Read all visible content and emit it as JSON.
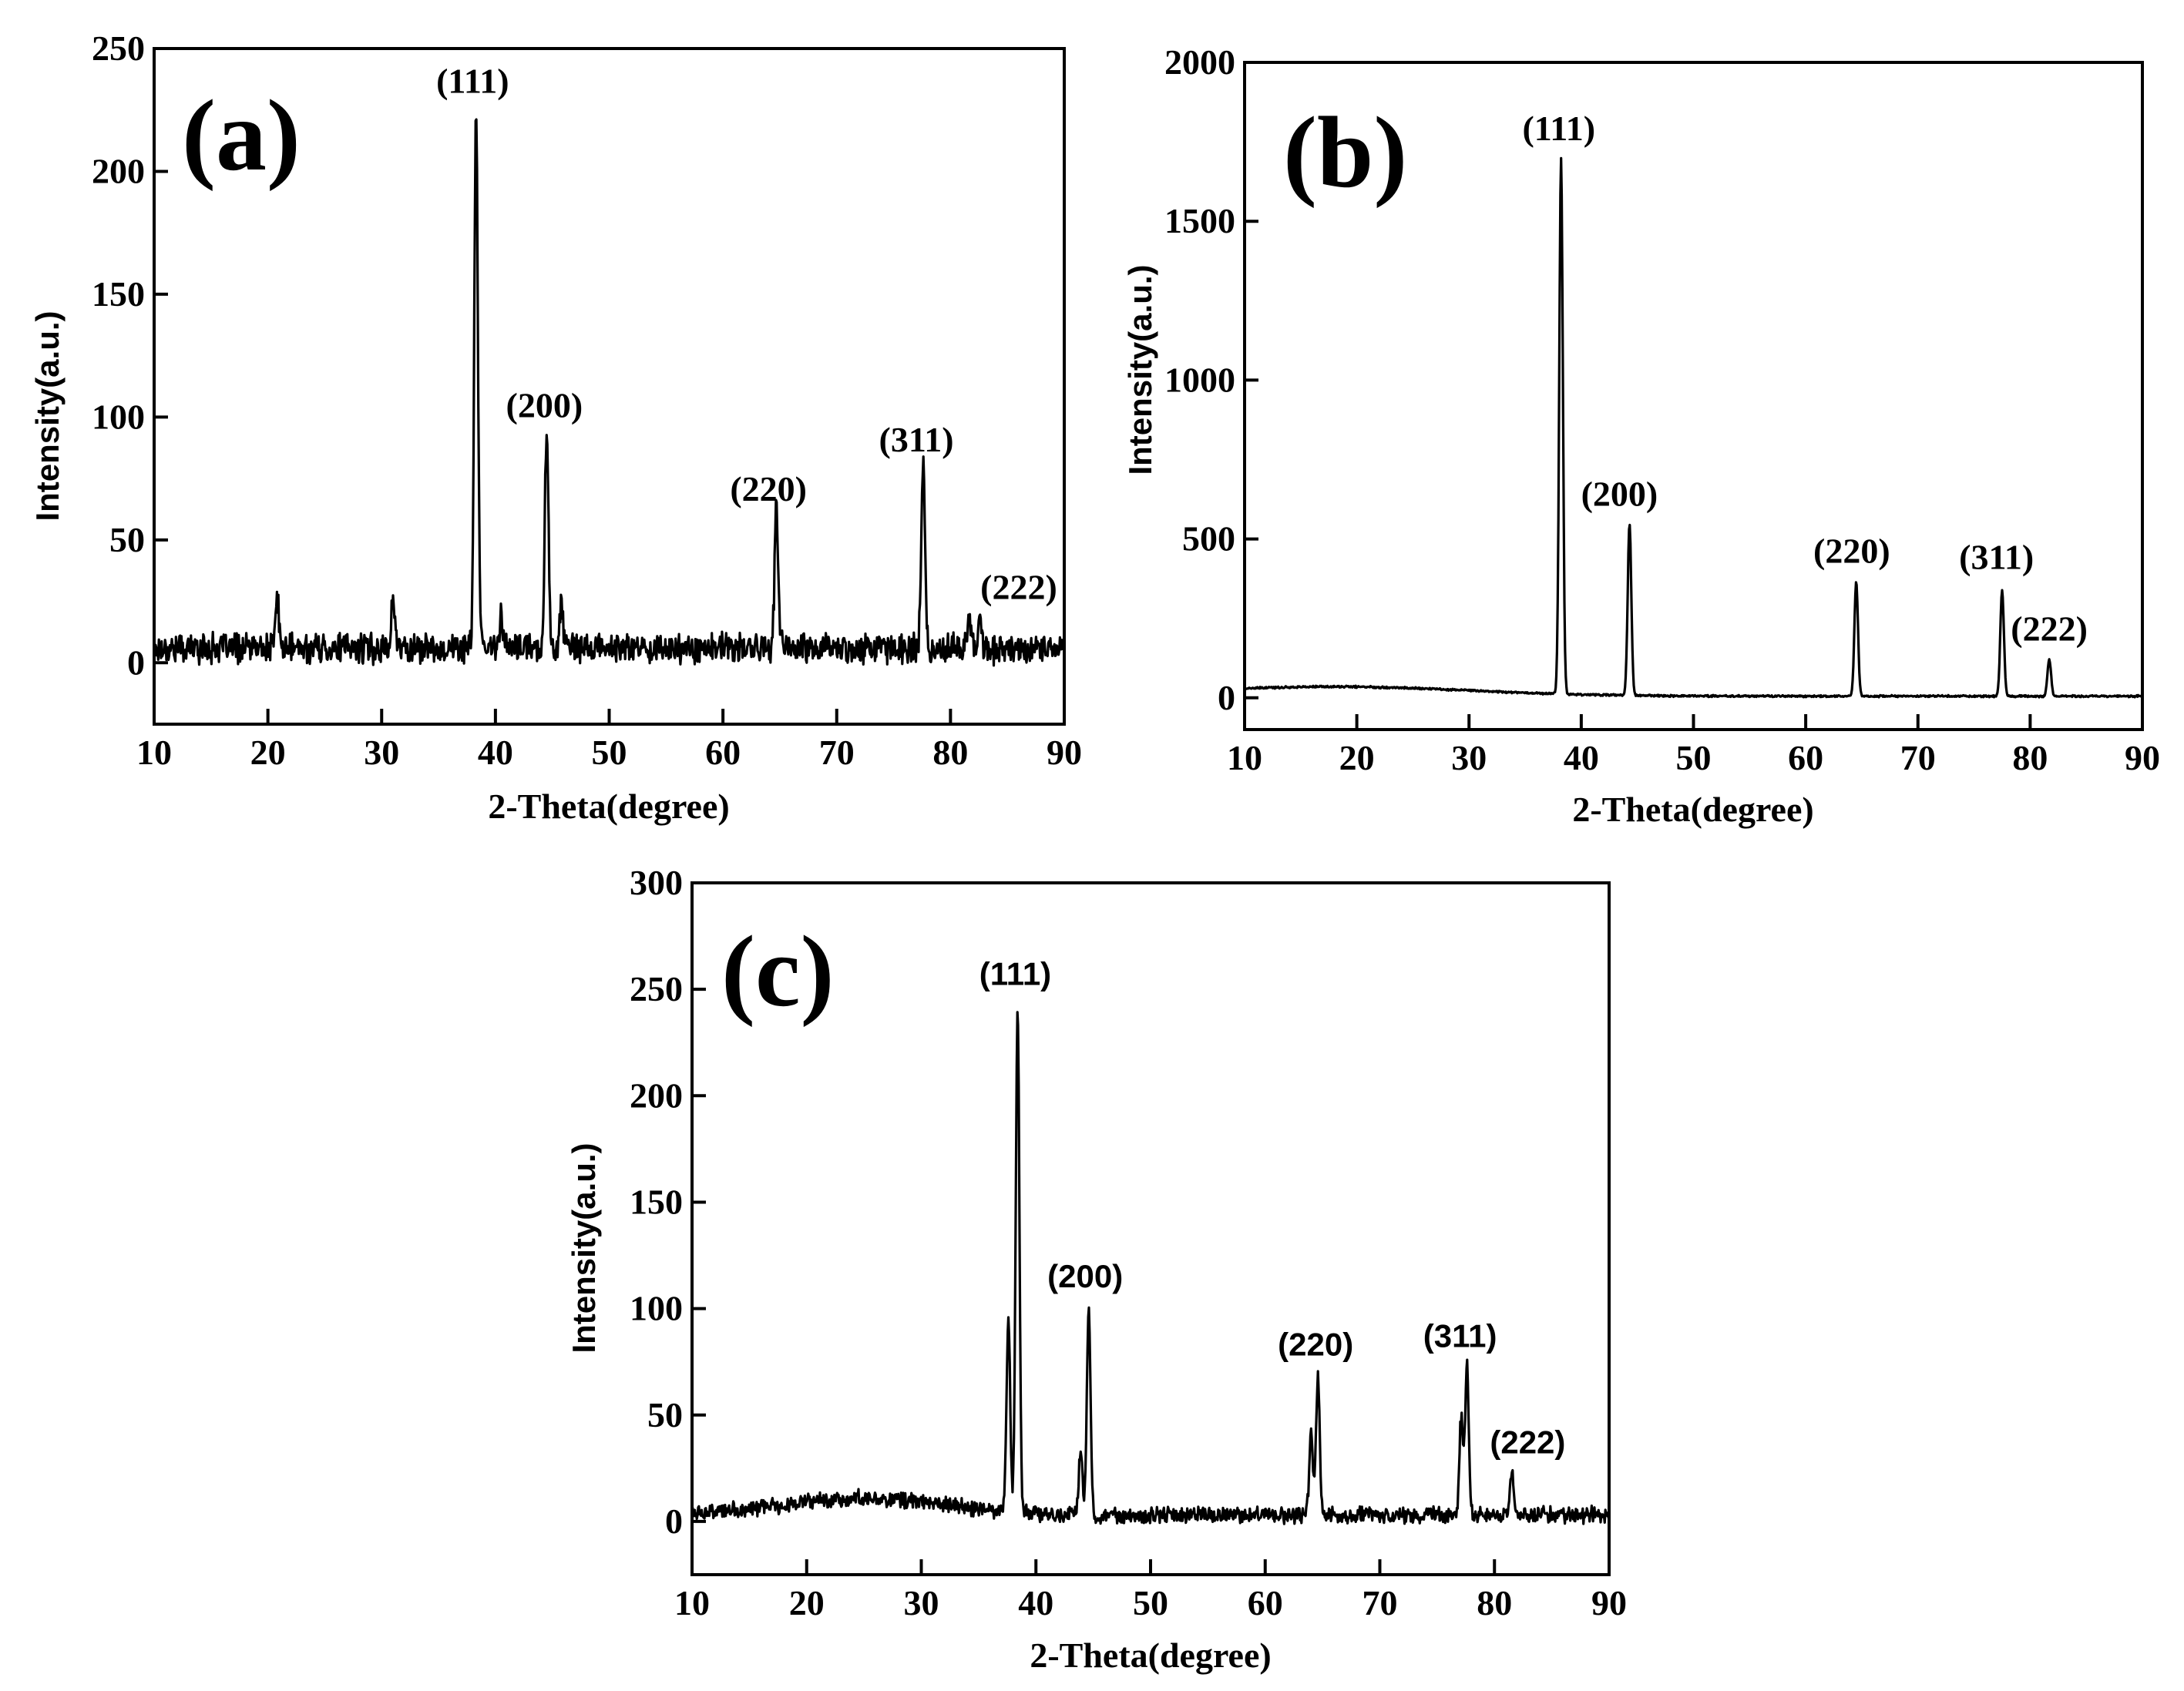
{
  "chart_data": [
    {
      "type": "line",
      "panel_tag": "(a)",
      "xlabel": "2-Theta(degree)",
      "ylabel": "Intensity(a.u.)",
      "xlim": [
        10,
        90
      ],
      "ylim": [
        -25,
        250
      ],
      "x_ticks": [
        10,
        20,
        30,
        40,
        50,
        60,
        70,
        80,
        90
      ],
      "y_ticks": [
        0,
        50,
        100,
        150,
        200,
        250
      ],
      "baseline": 6,
      "noise": 8,
      "peaks": [
        {
          "label": "(111)",
          "x": 38.3,
          "y": 225,
          "label_x": 38.0,
          "label_y": 232
        },
        {
          "label": "(200)",
          "x": 44.5,
          "y": 94,
          "label_x": 44.3,
          "label_y": 100
        },
        {
          "label": "(220)",
          "x": 64.7,
          "y": 62,
          "label_x": 64.0,
          "label_y": 66
        },
        {
          "label": "(311)",
          "x": 77.6,
          "y": 82,
          "label_x": 77.0,
          "label_y": 86
        },
        {
          "label": "(222)",
          "x": 81.7,
          "y": 17,
          "label_x": 86.0,
          "label_y": 26
        }
      ],
      "minor_peaks": [
        {
          "x": 20.8,
          "y": 26
        },
        {
          "x": 31.0,
          "y": 26
        },
        {
          "x": 40.5,
          "y": 20
        },
        {
          "x": 45.8,
          "y": 24
        },
        {
          "x": 82.6,
          "y": 18
        }
      ]
    },
    {
      "type": "line",
      "panel_tag": "(b)",
      "xlabel": "2-Theta(degree)",
      "ylabel": "Intensity(a.u.)",
      "xlim": [
        10,
        90
      ],
      "ylim": [
        -100,
        2000
      ],
      "x_ticks": [
        10,
        20,
        30,
        40,
        50,
        60,
        70,
        80,
        90
      ],
      "y_ticks": [
        0,
        500,
        1000,
        1500,
        2000
      ],
      "baseline": 5,
      "noise": 4,
      "hump": {
        "center": 18,
        "width": 12,
        "height": 30
      },
      "peaks": [
        {
          "label": "(111)",
          "x": 38.2,
          "y": 1690,
          "label_x": 38.0,
          "label_y": 1755
        },
        {
          "label": "(200)",
          "x": 44.3,
          "y": 545,
          "label_x": 43.4,
          "label_y": 605
        },
        {
          "label": "(220)",
          "x": 64.5,
          "y": 365,
          "label_x": 64.1,
          "label_y": 425
        },
        {
          "label": "(311)",
          "x": 77.5,
          "y": 340,
          "label_x": 77.0,
          "label_y": 405
        },
        {
          "label": "(222)",
          "x": 81.7,
          "y": 120,
          "label_x": 81.7,
          "label_y": 180
        }
      ],
      "minor_peaks": []
    },
    {
      "type": "line",
      "panel_tag": "(c)",
      "xlabel": "2-Theta(degree)",
      "ylabel": "Intensity(a.u.)",
      "xlim": [
        10,
        90
      ],
      "ylim": [
        -25,
        300
      ],
      "x_ticks": [
        10,
        20,
        30,
        40,
        50,
        60,
        70,
        80,
        90
      ],
      "y_ticks": [
        0,
        50,
        100,
        150,
        200,
        250,
        300
      ],
      "baseline": 3,
      "noise": 5,
      "hump": {
        "center": 25,
        "width": 7,
        "height": 8
      },
      "peaks": [
        {
          "label": "(111)",
          "x": 38.4,
          "y": 243,
          "label_x": 38.2,
          "label_y": 252
        },
        {
          "label": "(200)",
          "x": 44.6,
          "y": 101,
          "label_x": 44.3,
          "label_y": 110
        },
        {
          "label": "(220)",
          "x": 64.6,
          "y": 69,
          "label_x": 64.4,
          "label_y": 78
        },
        {
          "label": "(311)",
          "x": 77.6,
          "y": 73,
          "label_x": 77.0,
          "label_y": 82
        },
        {
          "label": "(222)",
          "x": 81.5,
          "y": 22,
          "label_x": 82.9,
          "label_y": 32
        }
      ],
      "minor_peaks": [
        {
          "x": 37.6,
          "y": 95
        },
        {
          "x": 43.9,
          "y": 33
        },
        {
          "x": 64.0,
          "y": 40
        },
        {
          "x": 77.1,
          "y": 48
        }
      ]
    }
  ]
}
